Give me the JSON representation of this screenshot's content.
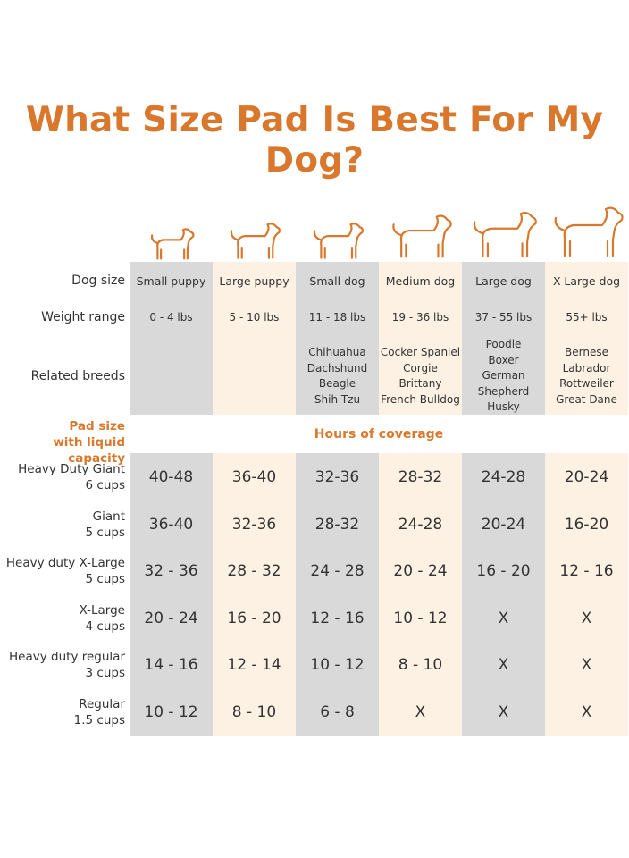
{
  "title": "What Size Pad Is Best For My Dog?",
  "colors": {
    "accent": "#d9782d",
    "grey": "#d9d9d9",
    "cream": "#fcf1e2"
  },
  "row_labels": {
    "dog_size": "Dog size",
    "weight": "Weight range",
    "breeds": "Related breeds"
  },
  "pad_header": {
    "line1": "Pad size",
    "line2": "with liquid capacity",
    "hours": "Hours of coverage"
  },
  "columns": [
    {
      "size": "Small puppy",
      "weight": "0 - 4 lbs",
      "breeds": []
    },
    {
      "size": "Large puppy",
      "weight": "5 - 10 lbs",
      "breeds": []
    },
    {
      "size": "Small dog",
      "weight": "11 - 18 lbs",
      "breeds": [
        "Chihuahua",
        "Dachshund",
        "Beagle",
        "Shih Tzu"
      ]
    },
    {
      "size": "Medium dog",
      "weight": "19 - 36 lbs",
      "breeds": [
        "Cocker Spaniel",
        "Corgie",
        "Brittany",
        "French Bulldog"
      ]
    },
    {
      "size": "Large dog",
      "weight": "37 - 55 lbs",
      "breeds": [
        "Poodle",
        "Boxer",
        "German",
        "Shepherd",
        "Husky"
      ]
    },
    {
      "size": "X-Large dog",
      "weight": "55+ lbs",
      "breeds": [
        "Bernese",
        "Labrador",
        "Rottweiler",
        "Great Dane"
      ]
    }
  ],
  "pads": [
    {
      "name": "Heavy Duty Giant",
      "cups": "6 cups",
      "hours": [
        "40-48",
        "36-40",
        "32-36",
        "28-32",
        "24-28",
        "20-24"
      ]
    },
    {
      "name": "Giant",
      "cups": "5 cups",
      "hours": [
        "36-40",
        "32-36",
        "28-32",
        "24-28",
        "20-24",
        "16-20"
      ]
    },
    {
      "name": "Heavy duty X-Large",
      "cups": "5 cups",
      "hours": [
        "32 - 36",
        "28 - 32",
        "24 - 28",
        "20 - 24",
        "16 - 20",
        "12 - 16"
      ]
    },
    {
      "name": "X-Large",
      "cups": "4 cups",
      "hours": [
        "20 - 24",
        "16 - 20",
        "12 - 16",
        "10 - 12",
        "X",
        "X"
      ]
    },
    {
      "name": "Heavy duty regular",
      "cups": "3 cups",
      "hours": [
        "14 - 16",
        "12 - 14",
        "10 - 12",
        "8 - 10",
        "X",
        "X"
      ]
    },
    {
      "name": "Regular",
      "cups": "1.5 cups",
      "hours": [
        "10 - 12",
        "8 - 10",
        "6 - 8",
        "X",
        "X",
        "X"
      ]
    }
  ]
}
